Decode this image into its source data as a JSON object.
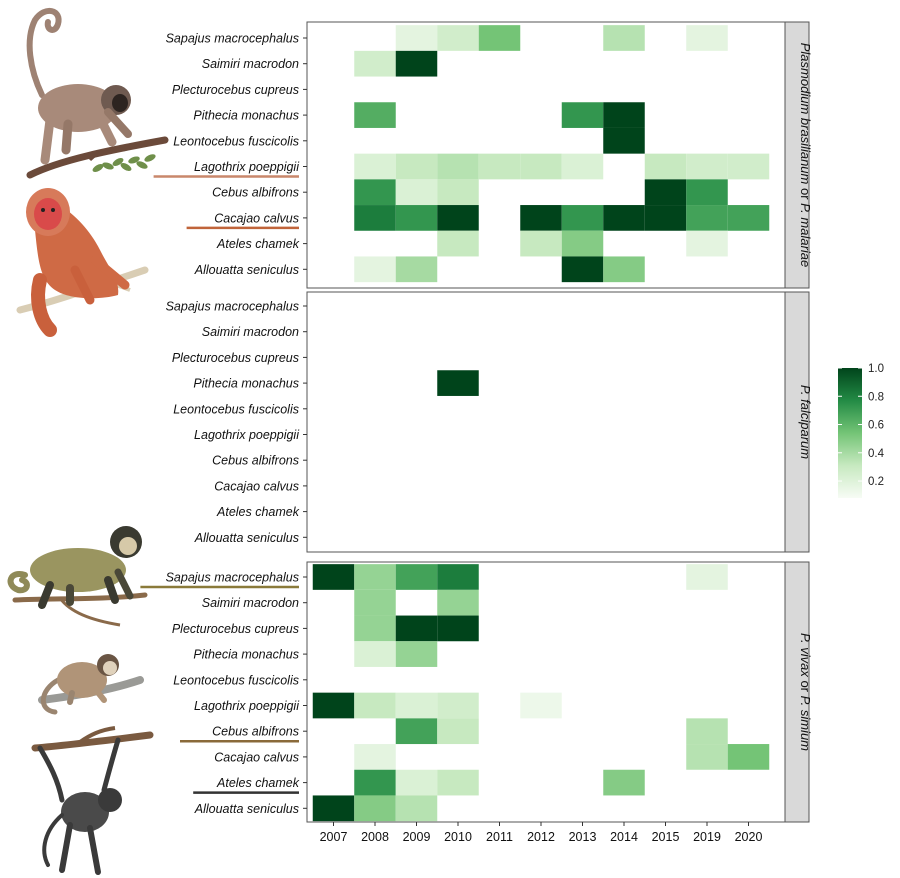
{
  "chart_data": {
    "type": "heatmap",
    "x_categories": [
      "2007",
      "2008",
      "2009",
      "2010",
      "2011",
      "2012",
      "2013",
      "2014",
      "2015",
      "2019",
      "2020"
    ],
    "y_categories": [
      "Sapajus macrocephalus",
      "Saimiri macrodon",
      "Plecturocebus cupreus",
      "Pithecia monachus",
      "Leontocebus fuscicolis",
      "Lagothrix poeppigii",
      "Cebus albifrons",
      "Cacajao calvus",
      "Ateles chamek",
      "Allouatta seniculus"
    ],
    "colorbar": {
      "min": 0,
      "max": 1,
      "ticks": [
        "1.0",
        "0.8",
        "0.6",
        "0.4",
        "0.2"
      ],
      "tick_values": [
        1.0,
        0.8,
        0.6,
        0.4,
        0.2
      ],
      "low_color": "#f7fcf5",
      "high_color": "#00441b"
    },
    "panels": [
      {
        "label": "Plasmodium brasilianum",
        "label_join": "or",
        "label2": "P. malariae",
        "cells": [
          {
            "species": "Sapajus macrocephalus",
            "year": "2009",
            "value": 0.1
          },
          {
            "species": "Sapajus macrocephalus",
            "year": "2010",
            "value": 0.2
          },
          {
            "species": "Sapajus macrocephalus",
            "year": "2011",
            "value": 0.5
          },
          {
            "species": "Sapajus macrocephalus",
            "year": "2014",
            "value": 0.3
          },
          {
            "species": "Sapajus macrocephalus",
            "year": "2019",
            "value": 0.1
          },
          {
            "species": "Saimiri macrodon",
            "year": "2008",
            "value": 0.2
          },
          {
            "species": "Saimiri macrodon",
            "year": "2009",
            "value": 1.0
          },
          {
            "species": "Pithecia monachus",
            "year": "2008",
            "value": 0.6
          },
          {
            "species": "Pithecia monachus",
            "year": "2013",
            "value": 0.7
          },
          {
            "species": "Pithecia monachus",
            "year": "2014",
            "value": 1.0
          },
          {
            "species": "Leontocebus fuscicolis",
            "year": "2014",
            "value": 1.0
          },
          {
            "species": "Lagothrix poeppigii",
            "year": "2008",
            "value": 0.15
          },
          {
            "species": "Lagothrix poeppigii",
            "year": "2009",
            "value": 0.25
          },
          {
            "species": "Lagothrix poeppigii",
            "year": "2010",
            "value": 0.3
          },
          {
            "species": "Lagothrix poeppigii",
            "year": "2011",
            "value": 0.25
          },
          {
            "species": "Lagothrix poeppigii",
            "year": "2012",
            "value": 0.25
          },
          {
            "species": "Lagothrix poeppigii",
            "year": "2013",
            "value": 0.15
          },
          {
            "species": "Lagothrix poeppigii",
            "year": "2015",
            "value": 0.25
          },
          {
            "species": "Lagothrix poeppigii",
            "year": "2019",
            "value": 0.2
          },
          {
            "species": "Lagothrix poeppigii",
            "year": "2020",
            "value": 0.2
          },
          {
            "species": "Cebus albifrons",
            "year": "2008",
            "value": 0.7
          },
          {
            "species": "Cebus albifrons",
            "year": "2009",
            "value": 0.15
          },
          {
            "species": "Cebus albifrons",
            "year": "2010",
            "value": 0.25
          },
          {
            "species": "Cebus albifrons",
            "year": "2015",
            "value": 1.0
          },
          {
            "species": "Cebus albifrons",
            "year": "2019",
            "value": 0.7
          },
          {
            "species": "Cacajao calvus",
            "year": "2008",
            "value": 0.8
          },
          {
            "species": "Cacajao calvus",
            "year": "2009",
            "value": 0.7
          },
          {
            "species": "Cacajao calvus",
            "year": "2010",
            "value": 1.0
          },
          {
            "species": "Cacajao calvus",
            "year": "2012",
            "value": 1.0
          },
          {
            "species": "Cacajao calvus",
            "year": "2013",
            "value": 0.7
          },
          {
            "species": "Cacajao calvus",
            "year": "2014",
            "value": 1.0
          },
          {
            "species": "Cacajao calvus",
            "year": "2015",
            "value": 1.0
          },
          {
            "species": "Cacajao calvus",
            "year": "2019",
            "value": 0.65
          },
          {
            "species": "Cacajao calvus",
            "year": "2020",
            "value": 0.65
          },
          {
            "species": "Ateles chamek",
            "year": "2010",
            "value": 0.25
          },
          {
            "species": "Ateles chamek",
            "year": "2012",
            "value": 0.25
          },
          {
            "species": "Ateles chamek",
            "year": "2013",
            "value": 0.45
          },
          {
            "species": "Ateles chamek",
            "year": "2019",
            "value": 0.1
          },
          {
            "species": "Allouatta seniculus",
            "year": "2008",
            "value": 0.1
          },
          {
            "species": "Allouatta seniculus",
            "year": "2009",
            "value": 0.35
          },
          {
            "species": "Allouatta seniculus",
            "year": "2013",
            "value": 1.0
          },
          {
            "species": "Allouatta seniculus",
            "year": "2014",
            "value": 0.45
          }
        ]
      },
      {
        "label": "P. falciparum",
        "cells": [
          {
            "species": "Pithecia monachus",
            "year": "2010",
            "value": 1.0
          }
        ]
      },
      {
        "label": "P. vivax",
        "label_join": "or",
        "label2": "P. simium",
        "cells": [
          {
            "species": "Sapajus macrocephalus",
            "year": "2007",
            "value": 1.0
          },
          {
            "species": "Sapajus macrocephalus",
            "year": "2008",
            "value": 0.4
          },
          {
            "species": "Sapajus macrocephalus",
            "year": "2009",
            "value": 0.65
          },
          {
            "species": "Sapajus macrocephalus",
            "year": "2010",
            "value": 0.8
          },
          {
            "species": "Sapajus macrocephalus",
            "year": "2019",
            "value": 0.1
          },
          {
            "species": "Saimiri macrodon",
            "year": "2008",
            "value": 0.4
          },
          {
            "species": "Saimiri macrodon",
            "year": "2010",
            "value": 0.4
          },
          {
            "species": "Plecturocebus cupreus",
            "year": "2008",
            "value": 0.4
          },
          {
            "species": "Plecturocebus cupreus",
            "year": "2009",
            "value": 1.0
          },
          {
            "species": "Plecturocebus cupreus",
            "year": "2010",
            "value": 1.0
          },
          {
            "species": "Pithecia monachus",
            "year": "2008",
            "value": 0.15
          },
          {
            "species": "Pithecia monachus",
            "year": "2009",
            "value": 0.4
          },
          {
            "species": "Lagothrix poeppigii",
            "year": "2007",
            "value": 1.0
          },
          {
            "species": "Lagothrix poeppigii",
            "year": "2008",
            "value": 0.25
          },
          {
            "species": "Lagothrix poeppigii",
            "year": "2009",
            "value": 0.15
          },
          {
            "species": "Lagothrix poeppigii",
            "year": "2010",
            "value": 0.2
          },
          {
            "species": "Lagothrix poeppigii",
            "year": "2012",
            "value": 0.05
          },
          {
            "species": "Cebus albifrons",
            "year": "2009",
            "value": 0.65
          },
          {
            "species": "Cebus albifrons",
            "year": "2010",
            "value": 0.25
          },
          {
            "species": "Cebus albifrons",
            "year": "2019",
            "value": 0.3
          },
          {
            "species": "Cacajao calvus",
            "year": "2008",
            "value": 0.1
          },
          {
            "species": "Cacajao calvus",
            "year": "2019",
            "value": 0.3
          },
          {
            "species": "Cacajao calvus",
            "year": "2020",
            "value": 0.5
          },
          {
            "species": "Ateles chamek",
            "year": "2008",
            "value": 0.7
          },
          {
            "species": "Ateles chamek",
            "year": "2009",
            "value": 0.15
          },
          {
            "species": "Ateles chamek",
            "year": "2010",
            "value": 0.25
          },
          {
            "species": "Ateles chamek",
            "year": "2014",
            "value": 0.45
          },
          {
            "species": "Allouatta seniculus",
            "year": "2007",
            "value": 1.0
          },
          {
            "species": "Allouatta seniculus",
            "year": "2008",
            "value": 0.45
          },
          {
            "species": "Allouatta seniculus",
            "year": "2009",
            "value": 0.3
          }
        ]
      }
    ],
    "highlighted_species": [
      {
        "panel": 0,
        "species": "Lagothrix poeppigii",
        "color": "#c9876b"
      },
      {
        "panel": 0,
        "species": "Cacajao calvus",
        "color": "#c0643a"
      },
      {
        "panel": 2,
        "species": "Sapajus macrocephalus",
        "color": "#8a7a3a"
      },
      {
        "panel": 2,
        "species": "Cebus albifrons",
        "color": "#8a6a3a"
      },
      {
        "panel": 2,
        "species": "Ateles chamek",
        "color": "#333333"
      }
    ],
    "illustrations": [
      {
        "panel": 0,
        "icon": "woolly-monkey-illustration"
      },
      {
        "panel": 0,
        "icon": "bald-uakari-illustration"
      },
      {
        "panel": 2,
        "icon": "capuchin-monkey-illustration"
      },
      {
        "panel": 2,
        "icon": "white-fronted-capuchin-illustration"
      },
      {
        "panel": 2,
        "icon": "spider-monkey-illustration"
      }
    ],
    "grid": false
  }
}
